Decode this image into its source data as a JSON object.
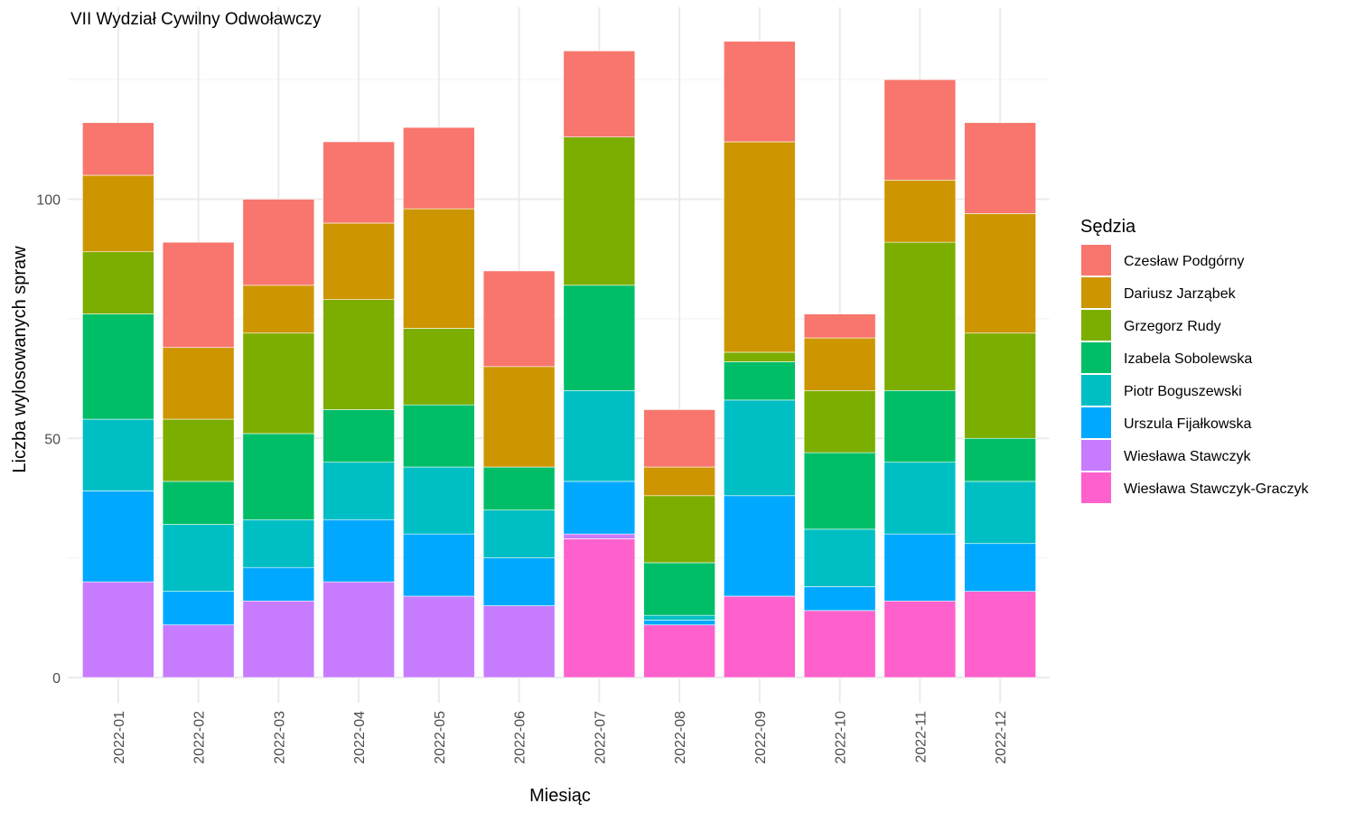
{
  "chart_data": {
    "type": "bar",
    "stacked": true,
    "title": "VII Wydział Cywilny Odwoławczy",
    "xlabel": "Miesiąc",
    "ylabel": "Liczba wylosowanych spraw",
    "ylim": [
      0,
      140
    ],
    "yticks": [
      0,
      50,
      100
    ],
    "grid": true,
    "legend_position": "right",
    "legend_title": "Sędzia",
    "categories": [
      "2022-01",
      "2022-02",
      "2022-03",
      "2022-04",
      "2022-05",
      "2022-06",
      "2022-07",
      "2022-08",
      "2022-09",
      "2022-10",
      "2022-11",
      "2022-12"
    ],
    "series": [
      {
        "name": "Wiesława Stawczyk-Graczyk",
        "color": "#FF61CC",
        "values": [
          0,
          0,
          0,
          0,
          0,
          0,
          29,
          11,
          17,
          14,
          16,
          18
        ]
      },
      {
        "name": "Wiesława Stawczyk",
        "color": "#C77CFF",
        "values": [
          20,
          11,
          16,
          20,
          17,
          15,
          1,
          0,
          0,
          0,
          0,
          0
        ]
      },
      {
        "name": "Urszula Fijałkowska",
        "color": "#00A9FF",
        "values": [
          19,
          7,
          7,
          13,
          13,
          10,
          11,
          1,
          21,
          5,
          14,
          10
        ]
      },
      {
        "name": "Piotr Boguszewski",
        "color": "#00BFC4",
        "values": [
          15,
          14,
          10,
          12,
          14,
          10,
          19,
          1,
          20,
          12,
          15,
          13
        ]
      },
      {
        "name": "Izabela Sobolewska",
        "color": "#00BE67",
        "values": [
          22,
          9,
          18,
          11,
          13,
          9,
          22,
          11,
          8,
          16,
          15,
          9
        ]
      },
      {
        "name": "Grzegorz Rudy",
        "color": "#7CAE00",
        "values": [
          13,
          13,
          21,
          23,
          16,
          0,
          31,
          14,
          2,
          13,
          31,
          22
        ]
      },
      {
        "name": "Dariusz Jarząbek",
        "color": "#CD9600",
        "values": [
          16,
          15,
          10,
          16,
          25,
          21,
          0,
          6,
          44,
          11,
          13,
          25
        ]
      },
      {
        "name": "Czesław Podgórny",
        "color": "#F8766D",
        "values": [
          11,
          22,
          18,
          17,
          17,
          20,
          18,
          12,
          21,
          5,
          21,
          19
        ]
      }
    ],
    "legend_order": [
      "Czesław Podgórny",
      "Dariusz Jarząbek",
      "Grzegorz Rudy",
      "Izabela Sobolewska",
      "Piotr Boguszewski",
      "Urszula Fijałkowska",
      "Wiesława Stawczyk",
      "Wiesława Stawczyk-Graczyk"
    ]
  }
}
